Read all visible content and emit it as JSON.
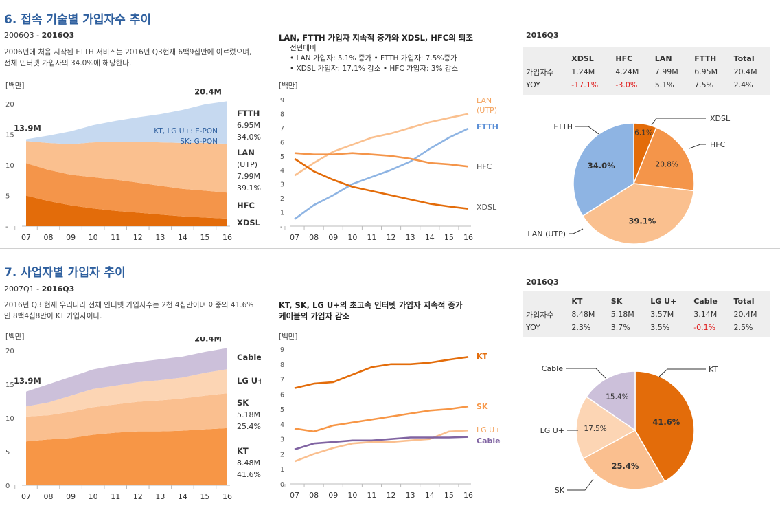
{
  "section1": {
    "title": "6. 접속 기술별 가입자수 추이",
    "period_start": "2006Q3 - ",
    "period_end": "2016Q3",
    "description": "2006년에 처음 시작된 FTTH 서비스는 2016년 Q3현재 6백9십만에 이르렀으며, 전체 인터넷 가입자의 34.0%에 해당한다.",
    "unit": "[백만]",
    "line_title": "LAN, FTTH 가입자 지속적 증가와 XDSL, HFC의 퇴조",
    "line_note_head": "전년대비",
    "line_note_1": "• LAN 가입자: 5.1% 증가 • FTTH 가입자: 7.5%증가",
    "line_note_2": "• XDSL 가입자: 17.1% 감소 •  HFC 가입자: 3% 감소",
    "line_unit": "[백만]",
    "table_label": "2016Q3",
    "table": {
      "headers": [
        "",
        "XDSL",
        "HFC",
        "LAN",
        "FTTH",
        "Total"
      ],
      "rows": [
        [
          "가입자수",
          "1.24M",
          "4.24M",
          "7.99M",
          "6.95M",
          "20.4M"
        ],
        [
          "YOY",
          "-17.1%",
          "-3.0%",
          "5.1%",
          "7.5%",
          "2.4%"
        ]
      ]
    }
  },
  "section2": {
    "title": "7. 사업자별 가입자 추이",
    "period_start": "2007Q1 - ",
    "period_end": "2016Q3",
    "description": "2016년 Q3 현재 우리나라 전체 인터넷 가입자수는 2천 4십만이며 이중의 41.6%인 8백4십8만이 KT 가입자이다.",
    "unit": "[백만]",
    "line_title_1": "KT, SK, LG U+의 초고속 인터넷 가입자 지속적 증가",
    "line_title_2": "케이블의 가입자 감소",
    "line_unit": "[백만]",
    "table_label": "2016Q3",
    "table": {
      "headers": [
        "",
        "KT",
        "SK",
        "LG U+",
        "Cable",
        "Total"
      ],
      "rows": [
        [
          "가입자수",
          "8.48M",
          "5.18M",
          "3.57M",
          "3.14M",
          "20.4M"
        ],
        [
          "YOY",
          "2.3%",
          "3.7%",
          "3.5%",
          "-0.1%",
          "2.5%"
        ]
      ]
    }
  },
  "chart_data": [
    {
      "id": "area1",
      "type": "area",
      "stacked": true,
      "x": [
        "07",
        "08",
        "09",
        "10",
        "11",
        "12",
        "13",
        "14",
        "15",
        "16"
      ],
      "ylim": [
        0,
        20
      ],
      "yticks": [
        "-",
        "5",
        "10",
        "15",
        "20"
      ],
      "start_label": "13.9M",
      "end_label": "20.4M",
      "series": [
        {
          "name": "XDSL",
          "color": "#e36c0a",
          "values": [
            5.0,
            4.1,
            3.4,
            2.9,
            2.5,
            2.2,
            1.9,
            1.6,
            1.4,
            1.24
          ]
        },
        {
          "name": "HFC",
          "color": "#f4954a",
          "values": [
            5.3,
            5.1,
            5.0,
            5.1,
            5.1,
            4.9,
            4.7,
            4.5,
            4.4,
            4.24
          ]
        },
        {
          "name": "LAN (UTP)",
          "color": "#fac08f",
          "values": [
            3.6,
            4.4,
            5.0,
            5.7,
            6.2,
            6.7,
            7.1,
            7.5,
            7.8,
            7.99
          ]
        },
        {
          "name": "FTTH",
          "color": "#c6d9f0",
          "values": [
            0.3,
            1.2,
            2.1,
            2.8,
            3.4,
            4.0,
            4.6,
            5.4,
            6.3,
            6.95
          ]
        }
      ],
      "right_labels": [
        {
          "name": "FTTH",
          "lines": [
            "6.95M",
            "34.0%"
          ]
        },
        {
          "name": "LAN",
          "lines": [
            "(UTP)",
            "7.99M",
            "39.1%"
          ]
        },
        {
          "name": "HFC",
          "lines": []
        },
        {
          "name": "XDSL",
          "lines": []
        }
      ],
      "annotation_1": "KT, LG U+: E-PON",
      "annotation_2": "SK: G-PON"
    },
    {
      "id": "line1",
      "type": "line",
      "x": [
        "07",
        "08",
        "09",
        "10",
        "11",
        "12",
        "13",
        "14",
        "15",
        "16"
      ],
      "ylim": [
        0,
        9
      ],
      "yticks": [
        "-",
        "1",
        "2",
        "3",
        "4",
        "5",
        "6",
        "7",
        "8",
        "9"
      ],
      "series": [
        {
          "name": "LAN",
          "label_2": "(UTP)",
          "color": "#fac08f",
          "values": [
            3.6,
            4.5,
            5.3,
            5.8,
            6.3,
            6.6,
            7.0,
            7.4,
            7.7,
            7.99
          ]
        },
        {
          "name": "FTTH",
          "color": "#8eb4e3",
          "values": [
            0.5,
            1.5,
            2.2,
            3.0,
            3.5,
            4.0,
            4.6,
            5.5,
            6.3,
            6.95
          ]
        },
        {
          "name": "HFC",
          "color": "#f4954a",
          "values": [
            5.2,
            5.1,
            5.1,
            5.2,
            5.1,
            5.0,
            4.8,
            4.5,
            4.4,
            4.24
          ]
        },
        {
          "name": "XDSL",
          "color": "#e36c0a",
          "values": [
            4.8,
            3.9,
            3.3,
            2.8,
            2.5,
            2.2,
            1.9,
            1.6,
            1.4,
            1.24
          ]
        }
      ]
    },
    {
      "id": "pie1",
      "type": "pie",
      "slices": [
        {
          "name": "XDSL",
          "value": 6.1,
          "label": "6.1%",
          "color": "#e36c0a"
        },
        {
          "name": "HFC",
          "value": 20.8,
          "label": "20.8%",
          "color": "#f4954a"
        },
        {
          "name": "LAN (UTP)",
          "value": 39.1,
          "label": "39.1%",
          "color": "#fac08f"
        },
        {
          "name": "FTTH",
          "value": 34.0,
          "label": "34.0%",
          "color": "#8eb4e3"
        }
      ]
    },
    {
      "id": "area2",
      "type": "area",
      "stacked": true,
      "x": [
        "07",
        "08",
        "09",
        "10",
        "11",
        "12",
        "13",
        "14",
        "15",
        "16"
      ],
      "ylim": [
        0,
        20
      ],
      "yticks": [
        "0",
        "5",
        "10",
        "15",
        "20"
      ],
      "start_label": "13.9M",
      "end_label": "20.4M",
      "series": [
        {
          "name": "KT",
          "color": "#f79646",
          "values": [
            6.5,
            6.8,
            7.0,
            7.5,
            7.8,
            8.0,
            8.0,
            8.1,
            8.3,
            8.48
          ]
        },
        {
          "name": "SK",
          "color": "#fabf8f",
          "values": [
            3.7,
            3.6,
            3.9,
            4.1,
            4.2,
            4.4,
            4.6,
            4.8,
            5.0,
            5.18
          ]
        },
        {
          "name": "LG U+",
          "color": "#fcd5b4",
          "values": [
            1.5,
            1.9,
            2.4,
            2.7,
            2.8,
            2.9,
            3.0,
            3.1,
            3.4,
            3.57
          ]
        },
        {
          "name": "Cable",
          "color": "#ccc0da",
          "values": [
            2.2,
            2.7,
            2.8,
            2.9,
            3.0,
            3.0,
            3.1,
            3.1,
            3.1,
            3.14
          ]
        }
      ],
      "right_labels": [
        {
          "name": "Cable",
          "lines": []
        },
        {
          "name": "LG U+",
          "lines": []
        },
        {
          "name": "SK",
          "lines": [
            "5.18M",
            "25.4%"
          ]
        },
        {
          "name": "KT",
          "lines": [
            "8.48M",
            "41.6%"
          ]
        }
      ]
    },
    {
      "id": "line2",
      "type": "line",
      "x": [
        "07",
        "08",
        "09",
        "10",
        "11",
        "12",
        "13",
        "14",
        "15",
        "16"
      ],
      "ylim": [
        0,
        9
      ],
      "yticks": [
        "0",
        "1",
        "2",
        "3",
        "4",
        "5",
        "6",
        "7",
        "8",
        "9"
      ],
      "series": [
        {
          "name": "KT",
          "color": "#e36c0a",
          "values": [
            6.4,
            6.7,
            6.8,
            7.3,
            7.8,
            8.0,
            8.0,
            8.1,
            8.3,
            8.48
          ]
        },
        {
          "name": "SK",
          "color": "#f79646",
          "values": [
            3.7,
            3.5,
            3.9,
            4.1,
            4.3,
            4.5,
            4.7,
            4.9,
            5.0,
            5.18
          ]
        },
        {
          "name": "LG U+",
          "color": "#fabf8f",
          "values": [
            1.5,
            2.0,
            2.4,
            2.7,
            2.8,
            2.8,
            2.9,
            3.0,
            3.5,
            3.57
          ]
        },
        {
          "name": "Cable",
          "color": "#8064a2",
          "values": [
            2.3,
            2.7,
            2.8,
            2.9,
            2.9,
            3.0,
            3.1,
            3.1,
            3.1,
            3.14
          ]
        }
      ]
    },
    {
      "id": "pie2",
      "type": "pie",
      "slices": [
        {
          "name": "KT",
          "value": 41.6,
          "label": "41.6%",
          "color": "#e36c0a"
        },
        {
          "name": "SK",
          "value": 25.4,
          "label": "25.4%",
          "color": "#fabf8f"
        },
        {
          "name": "LG U+",
          "value": 17.5,
          "label": "17.5%",
          "color": "#fcd5b4"
        },
        {
          "name": "Cable",
          "value": 15.4,
          "label": "15.4%",
          "color": "#ccc0da"
        }
      ]
    }
  ]
}
